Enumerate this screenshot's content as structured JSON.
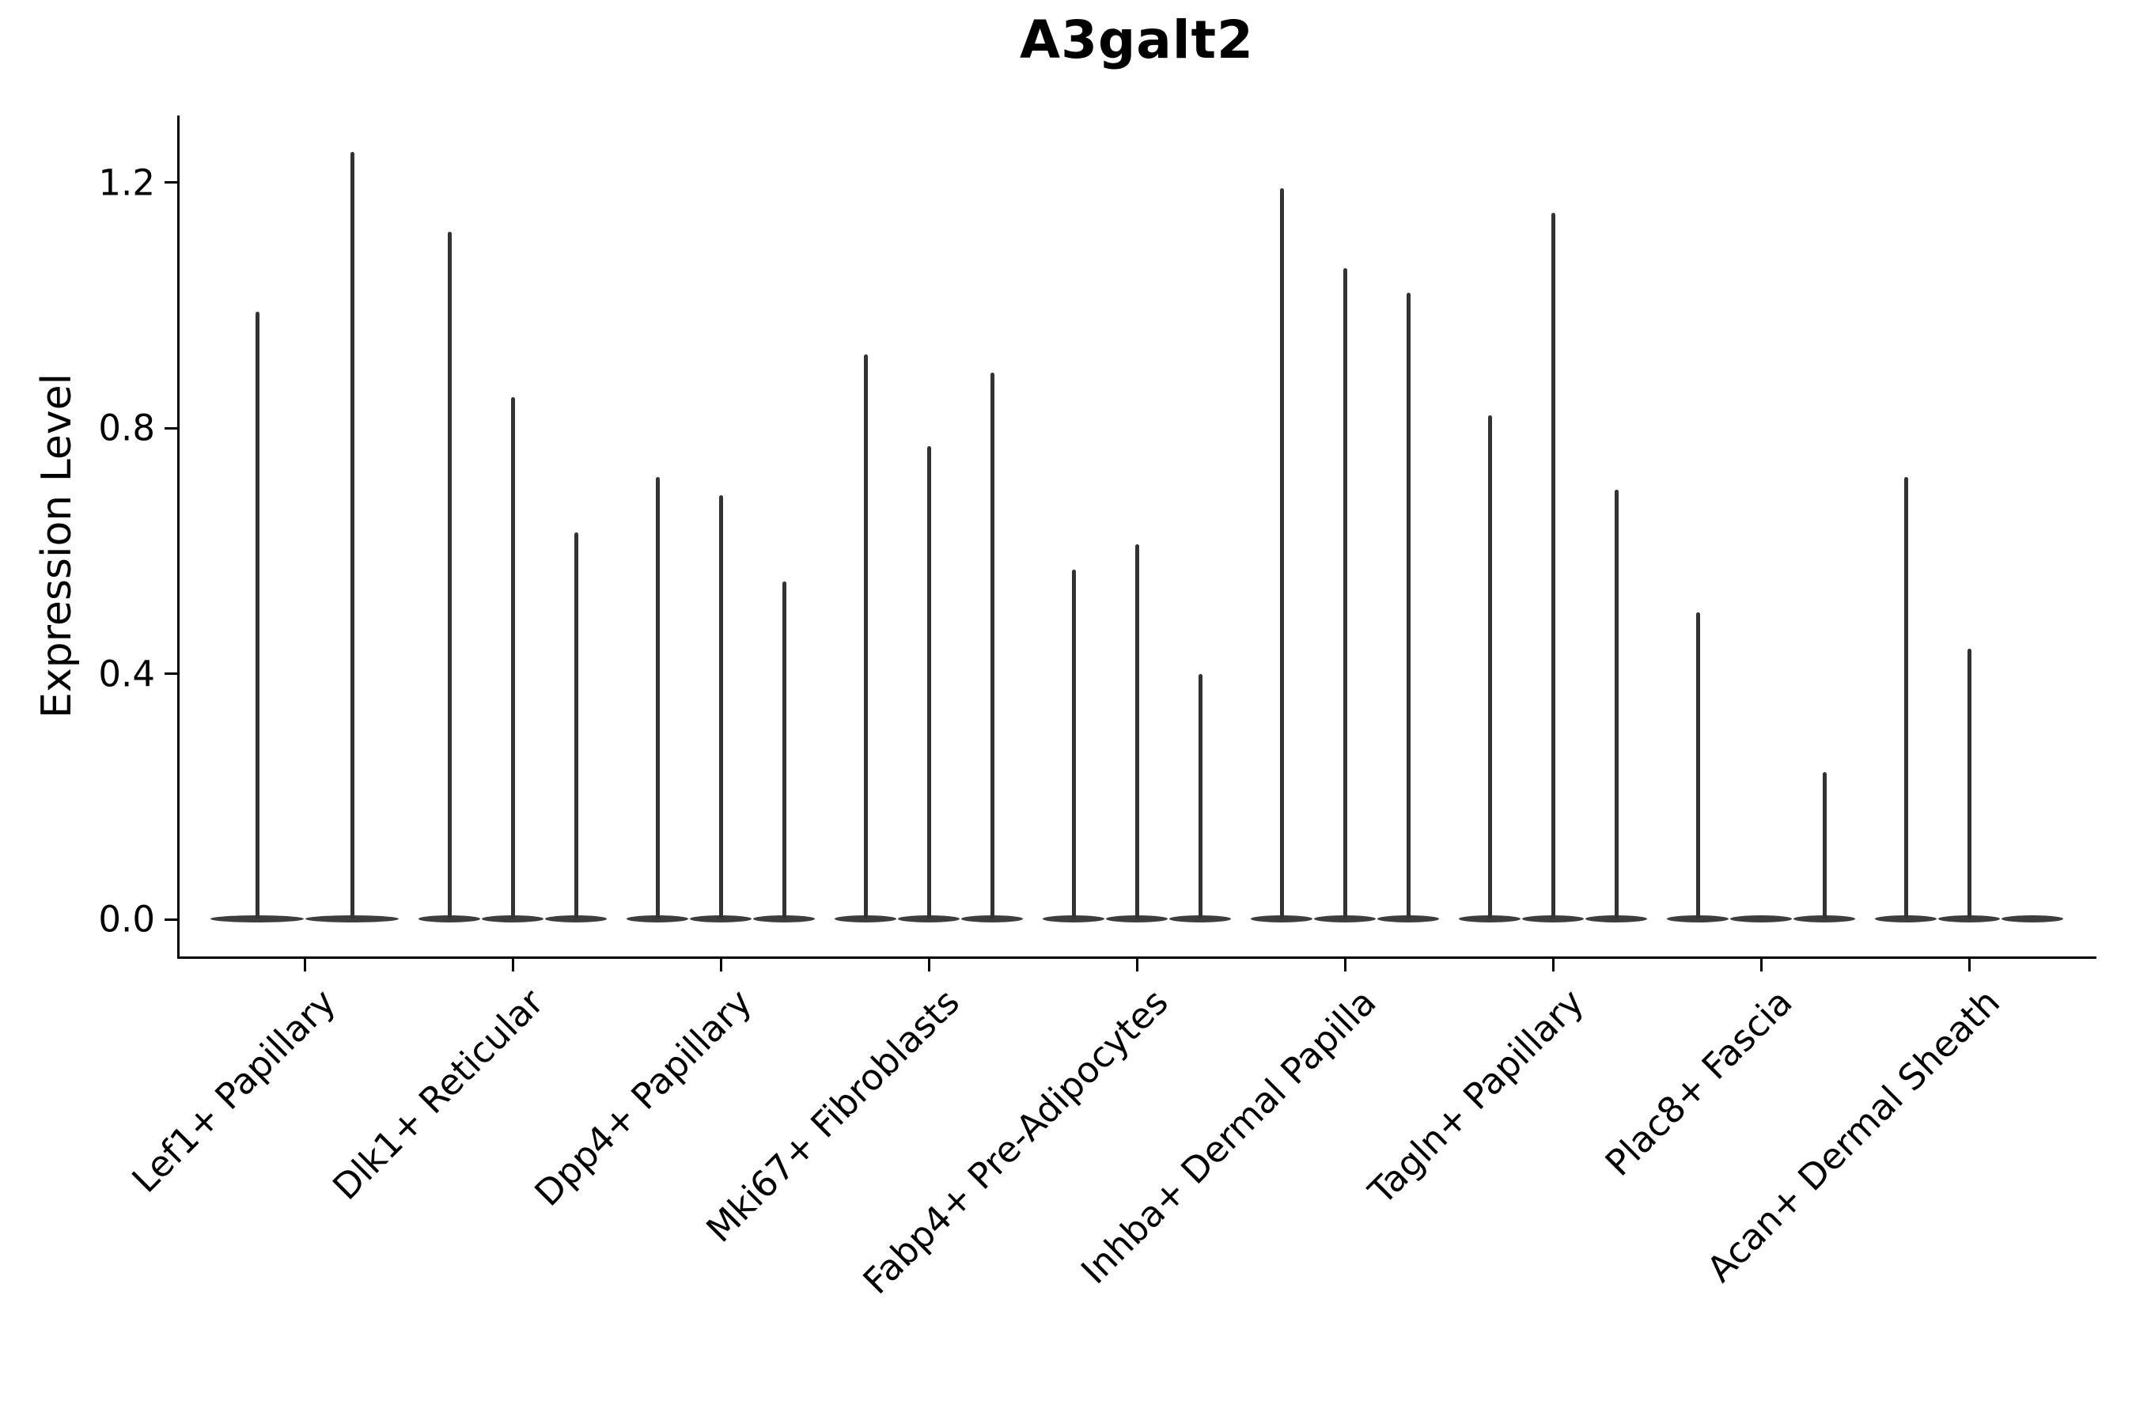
{
  "title": "A3galt2",
  "chart_data": {
    "type": "violin",
    "title": "A3galt2",
    "xlabel": "",
    "ylabel": "Expression Level",
    "ylim": [
      0,
      1.31
    ],
    "yticks": [
      0.0,
      0.4,
      0.8,
      1.2
    ],
    "ytick_labels": [
      "0.0",
      "0.4",
      "0.8",
      "1.2"
    ],
    "grid": false,
    "legend": "none",
    "note": "Seurat-style violin plot: each cell-type category contains 2-3 very thin violins; almost all density sits at expression 0 (flat pancake at baseline) with a narrow spike rising to each violin's maximum expression value listed in violin_maxima. A maximum of 0 means the violin is completely flat at the baseline.",
    "categories": [
      "Lef1+ Papillary",
      "Dlk1+ Reticular",
      "Dpp4+ Papillary",
      "Mki67+ Fibroblasts",
      "Fabp4+ Pre-Adipocytes",
      "Inhba+ Dermal Papilla",
      "Tagln+ Papillary",
      "Plac8+ Fascia",
      "Acan+ Dermal Sheath"
    ],
    "groups": [
      {
        "category": "Lef1+ Papillary",
        "violin_maxima": [
          0.99,
          1.25
        ]
      },
      {
        "category": "Dlk1+ Reticular",
        "violin_maxima": [
          1.12,
          0.85,
          0.63
        ]
      },
      {
        "category": "Dpp4+ Papillary",
        "violin_maxima": [
          0.72,
          0.69,
          0.55
        ]
      },
      {
        "category": "Mki67+ Fibroblasts",
        "violin_maxima": [
          0.92,
          0.77,
          0.89
        ]
      },
      {
        "category": "Fabp4+ Pre-Adipocytes",
        "violin_maxima": [
          0.57,
          0.61,
          0.4
        ]
      },
      {
        "category": "Inhba+ Dermal Papilla",
        "violin_maxima": [
          1.19,
          1.06,
          1.02
        ]
      },
      {
        "category": "Tagln+ Papillary",
        "violin_maxima": [
          0.82,
          1.15,
          0.7
        ]
      },
      {
        "category": "Plac8+ Fascia",
        "violin_maxima": [
          0.5,
          0.0,
          0.24
        ]
      },
      {
        "category": "Acan+ Dermal Sheath",
        "violin_maxima": [
          0.72,
          0.44,
          0.0
        ]
      }
    ],
    "colors": {
      "line": "#333333",
      "violin": "#3d3d3d",
      "text": "#000000",
      "background": "#ffffff"
    }
  }
}
